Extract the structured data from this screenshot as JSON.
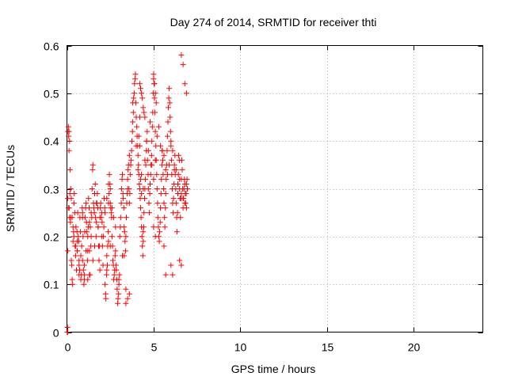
{
  "chart_data": {
    "type": "scatter",
    "title": "Day 274 of 2014, SRMTID for receiver thti",
    "xlabel": "GPS time / hours",
    "ylabel": "SRMTID / TECUs",
    "xlim": [
      0,
      24
    ],
    "ylim": [
      0,
      0.6
    ],
    "xticks": [
      0,
      5,
      10,
      15,
      20
    ],
    "xtick_labels": [
      "0",
      "5",
      "10",
      "15",
      "20"
    ],
    "yticks": [
      0,
      0.1,
      0.2,
      0.3,
      0.4,
      0.5,
      0.6
    ],
    "ytick_labels": [
      "0",
      "0.1",
      "0.2",
      "0.3",
      "0.4",
      "0.5",
      "0.6"
    ],
    "grid": true,
    "marker": "+",
    "color": "#ff0000",
    "series": [
      {
        "name": "SRMTID",
        "x": [
          0.02,
          0.03,
          0.05,
          0.06,
          0.08,
          0.1,
          0.12,
          0.13,
          0.15,
          0.17,
          0.2,
          0.22,
          0.25,
          0.28,
          0.3,
          0.33,
          0.35,
          0.38,
          0.4,
          0.42,
          0.45,
          0.47,
          0.5,
          0.52,
          0.55,
          0.58,
          0.6,
          0.62,
          0.65,
          0.68,
          0.7,
          0.73,
          0.75,
          0.78,
          0.8,
          0.83,
          0.85,
          0.88,
          0.9,
          0.93,
          0.95,
          0.98,
          1.0,
          1.03,
          1.05,
          1.08,
          1.1,
          1.13,
          1.15,
          1.18,
          1.2,
          1.23,
          1.25,
          1.28,
          1.3,
          1.33,
          1.35,
          1.38,
          1.4,
          1.43,
          1.45,
          1.48,
          1.5,
          1.53,
          1.55,
          1.58,
          1.6,
          1.63,
          1.65,
          1.68,
          1.7,
          1.73,
          1.75,
          1.78,
          1.8,
          1.83,
          1.85,
          1.88,
          1.9,
          1.93,
          1.95,
          1.98,
          2.0,
          2.03,
          2.05,
          2.08,
          2.1,
          2.13,
          2.15,
          2.18,
          2.2,
          2.23,
          2.25,
          2.28,
          2.3,
          2.33,
          2.35,
          2.38,
          2.4,
          2.43,
          2.45,
          2.48,
          2.5,
          2.53,
          2.55,
          2.58,
          2.6,
          2.63,
          2.65,
          2.68,
          2.7,
          2.73,
          2.75,
          2.78,
          2.8,
          2.83,
          2.85,
          2.88,
          2.9,
          2.93,
          2.95,
          2.98,
          3.0,
          3.03,
          3.05,
          3.08,
          3.1,
          3.13,
          3.15,
          3.18,
          3.2,
          3.23,
          3.25,
          3.28,
          3.3,
          3.33,
          3.35,
          3.38,
          3.4,
          3.43,
          3.45,
          3.48,
          3.5,
          3.53,
          3.55,
          3.58,
          3.6,
          3.63,
          3.65,
          3.68,
          3.7,
          3.73,
          3.75,
          3.78,
          3.8,
          3.83,
          3.85,
          3.88,
          3.9,
          3.93,
          3.95,
          3.98,
          4.0,
          4.03,
          4.05,
          4.08,
          4.1,
          4.13,
          4.15,
          4.18,
          4.2,
          4.23,
          4.25,
          4.28,
          4.3,
          4.33,
          4.35,
          4.38,
          4.4,
          4.43,
          4.45,
          4.48,
          4.5,
          4.53,
          4.55,
          4.58,
          4.6,
          4.63,
          4.65,
          4.68,
          4.7,
          4.73,
          4.75,
          4.78,
          4.8,
          4.83,
          4.85,
          4.88,
          4.9,
          4.93,
          4.95,
          4.98,
          5.0,
          5.03,
          5.05,
          5.08,
          5.1,
          5.13,
          5.15,
          5.18,
          5.2,
          5.23,
          5.25,
          5.28,
          5.3,
          5.33,
          5.35,
          5.38,
          5.4,
          5.43,
          5.45,
          5.48,
          5.5,
          5.53,
          5.55,
          5.58,
          5.6,
          5.63,
          5.65,
          5.68,
          5.7,
          5.73,
          5.75,
          5.78,
          5.8,
          5.83,
          5.85,
          5.88,
          5.9,
          5.93,
          5.95,
          5.98,
          6.0,
          6.03,
          6.05,
          6.08,
          6.1,
          6.13,
          6.15,
          6.18,
          6.2,
          6.23,
          6.25,
          6.28,
          6.3,
          6.33,
          6.35,
          6.38,
          6.4,
          6.43,
          6.45,
          6.48,
          6.5,
          6.53,
          6.55,
          6.58,
          6.6,
          6.63,
          6.65,
          6.68,
          6.7,
          6.73,
          6.75,
          6.78,
          6.8,
          6.83,
          6.85,
          6.88,
          6.9,
          6.93,
          6.95,
          0.05,
          0.08,
          0.12,
          0.15,
          0.18,
          0.22,
          0.25,
          0.3,
          0.35,
          0.4,
          0.5,
          0.6,
          0.7,
          0.8,
          0.9,
          1.0,
          1.1,
          1.2,
          1.3,
          1.4,
          1.5,
          1.6,
          1.7,
          1.8,
          1.9,
          2.0,
          2.2,
          2.3,
          2.4,
          2.5,
          2.6,
          2.7,
          2.8,
          3.0,
          3.2,
          3.4,
          3.5,
          3.6,
          3.8,
          4.0,
          4.1,
          4.2,
          4.3,
          4.4,
          4.5,
          4.6,
          4.7,
          4.8,
          4.9,
          5.0,
          5.1,
          5.2,
          5.3,
          5.4,
          5.5,
          5.6,
          5.7,
          5.8,
          5.9,
          6.0,
          6.1,
          6.2,
          6.3,
          6.4,
          6.5,
          6.6,
          6.7,
          6.8,
          6.9,
          4.2,
          4.25,
          4.3,
          4.35,
          4.4,
          4.45,
          4.5,
          5.0,
          5.05,
          5.1,
          5.15,
          6.6,
          6.7,
          6.8,
          6.9,
          4.15,
          4.2,
          4.25,
          4.3,
          4.4,
          5.0,
          5.1,
          5.6,
          5.7,
          6.0,
          6.1,
          6.5,
          6.6,
          2.4,
          2.5,
          2.3,
          1.3,
          1.2,
          3.4,
          3.5,
          3.6,
          3.3,
          0.9,
          1.0,
          0.6,
          0.7,
          0.02,
          0.03,
          0.04
        ],
        "y": [
          0.0,
          0.01,
          0.17,
          0.42,
          0.43,
          0.41,
          0.38,
          0.26,
          0.24,
          0.29,
          0.23,
          0.24,
          0.15,
          0.14,
          0.11,
          0.1,
          0.19,
          0.21,
          0.27,
          0.29,
          0.25,
          0.18,
          0.16,
          0.22,
          0.13,
          0.21,
          0.19,
          0.25,
          0.2,
          0.19,
          0.15,
          0.13,
          0.24,
          0.21,
          0.11,
          0.12,
          0.18,
          0.26,
          0.25,
          0.2,
          0.13,
          0.1,
          0.11,
          0.21,
          0.24,
          0.26,
          0.27,
          0.23,
          0.21,
          0.15,
          0.17,
          0.22,
          0.28,
          0.26,
          0.17,
          0.12,
          0.22,
          0.18,
          0.2,
          0.24,
          0.3,
          0.34,
          0.35,
          0.27,
          0.26,
          0.25,
          0.29,
          0.31,
          0.24,
          0.2,
          0.23,
          0.27,
          0.29,
          0.26,
          0.22,
          0.18,
          0.15,
          0.18,
          0.24,
          0.26,
          0.27,
          0.24,
          0.25,
          0.23,
          0.18,
          0.14,
          0.2,
          0.22,
          0.28,
          0.26,
          0.1,
          0.08,
          0.07,
          0.12,
          0.13,
          0.14,
          0.18,
          0.21,
          0.27,
          0.29,
          0.33,
          0.31,
          0.3,
          0.26,
          0.25,
          0.24,
          0.2,
          0.18,
          0.15,
          0.14,
          0.11,
          0.12,
          0.13,
          0.16,
          0.17,
          0.14,
          0.13,
          0.11,
          0.09,
          0.06,
          0.07,
          0.08,
          0.1,
          0.12,
          0.2,
          0.22,
          0.24,
          0.27,
          0.3,
          0.32,
          0.33,
          0.29,
          0.28,
          0.26,
          0.22,
          0.21,
          0.19,
          0.17,
          0.2,
          0.24,
          0.27,
          0.29,
          0.32,
          0.34,
          0.35,
          0.3,
          0.27,
          0.29,
          0.33,
          0.35,
          0.36,
          0.38,
          0.4,
          0.42,
          0.44,
          0.46,
          0.49,
          0.5,
          0.52,
          0.53,
          0.54,
          0.48,
          0.45,
          0.43,
          0.41,
          0.39,
          0.37,
          0.35,
          0.33,
          0.31,
          0.3,
          0.28,
          0.26,
          0.24,
          0.22,
          0.2,
          0.18,
          0.16,
          0.19,
          0.22,
          0.25,
          0.28,
          0.3,
          0.32,
          0.35,
          0.38,
          0.4,
          0.42,
          0.36,
          0.33,
          0.3,
          0.27,
          0.25,
          0.29,
          0.31,
          0.33,
          0.35,
          0.37,
          0.4,
          0.43,
          0.46,
          0.5,
          0.53,
          0.52,
          0.49,
          0.46,
          0.42,
          0.39,
          0.36,
          0.33,
          0.3,
          0.27,
          0.24,
          0.22,
          0.2,
          0.19,
          0.21,
          0.23,
          0.26,
          0.29,
          0.32,
          0.35,
          0.38,
          0.36,
          0.33,
          0.3,
          0.27,
          0.24,
          0.22,
          0.26,
          0.29,
          0.32,
          0.35,
          0.38,
          0.41,
          0.44,
          0.47,
          0.49,
          0.51,
          0.48,
          0.45,
          0.42,
          0.39,
          0.36,
          0.33,
          0.3,
          0.27,
          0.25,
          0.28,
          0.31,
          0.34,
          0.37,
          0.33,
          0.3,
          0.27,
          0.24,
          0.21,
          0.25,
          0.29,
          0.33,
          0.37,
          0.36,
          0.32,
          0.28,
          0.24,
          0.28,
          0.32,
          0.36,
          0.34,
          0.3,
          0.26,
          0.28,
          0.3,
          0.32,
          0.31,
          0.29,
          0.27,
          0.29,
          0.31,
          0.32,
          0.3,
          0.28,
          0.26,
          0.42,
          0.4,
          0.34,
          0.3,
          0.28,
          0.24,
          0.22,
          0.2,
          0.18,
          0.17,
          0.14,
          0.16,
          0.24,
          0.12,
          0.17,
          0.2,
          0.23,
          0.25,
          0.15,
          0.18,
          0.27,
          0.22,
          0.13,
          0.2,
          0.25,
          0.28,
          0.31,
          0.27,
          0.26,
          0.24,
          0.22,
          0.11,
          0.16,
          0.09,
          0.3,
          0.37,
          0.48,
          0.39,
          0.34,
          0.45,
          0.33,
          0.3,
          0.36,
          0.4,
          0.38,
          0.44,
          0.35,
          0.32,
          0.36,
          0.41,
          0.43,
          0.39,
          0.38,
          0.37,
          0.34,
          0.33,
          0.35,
          0.4,
          0.38,
          0.35,
          0.34,
          0.31,
          0.3,
          0.29,
          0.28,
          0.27,
          0.26,
          0.52,
          0.51,
          0.5,
          0.49,
          0.47,
          0.46,
          0.45,
          0.54,
          0.52,
          0.5,
          0.48,
          0.58,
          0.56,
          0.52,
          0.5,
          0.41,
          0.39,
          0.32,
          0.29,
          0.21,
          0.22,
          0.2,
          0.18,
          0.12,
          0.14,
          0.12,
          0.15,
          0.14,
          0.19,
          0.18,
          0.16,
          0.12,
          0.11,
          0.06,
          0.07,
          0.08,
          0.16,
          0.15,
          0.14,
          0.17,
          0.12,
          0.0,
          0.0,
          0.0
        ]
      }
    ]
  }
}
